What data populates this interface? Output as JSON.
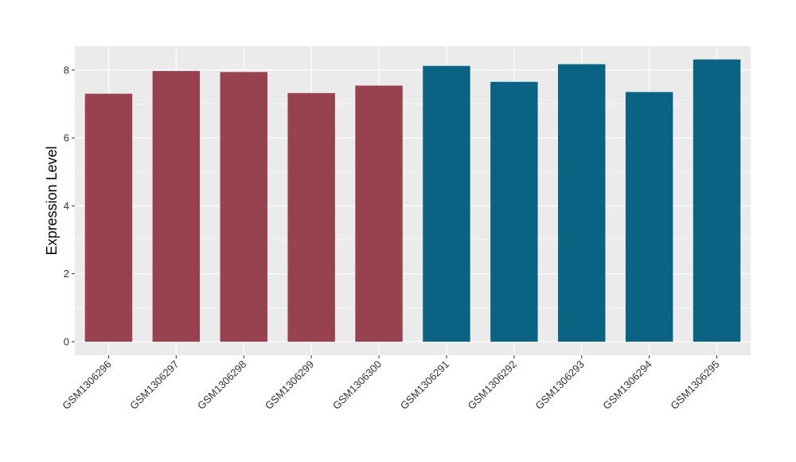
{
  "chart_data": {
    "type": "bar",
    "title": "",
    "xlabel": "",
    "ylabel": "Expression Level",
    "ylim": [
      -0.4,
      8.7
    ],
    "yticks": [
      0,
      2,
      4,
      6,
      8
    ],
    "grid": true,
    "categories": [
      "GSM1306296",
      "GSM1306297",
      "GSM1306298",
      "GSM1306299",
      "GSM1306300",
      "GSM1306291",
      "GSM1306292",
      "GSM1306293",
      "GSM1306294",
      "GSM1306295"
    ],
    "values": [
      7.3,
      7.97,
      7.94,
      7.32,
      7.54,
      8.12,
      7.65,
      8.17,
      7.35,
      8.31
    ],
    "groups": [
      0,
      0,
      0,
      0,
      0,
      1,
      1,
      1,
      1,
      1
    ],
    "colors": {
      "group_1": "#99424f",
      "group_2": "#0b6384",
      "panel_background": "#ebebeb",
      "grid_line": "#ffffff"
    }
  }
}
